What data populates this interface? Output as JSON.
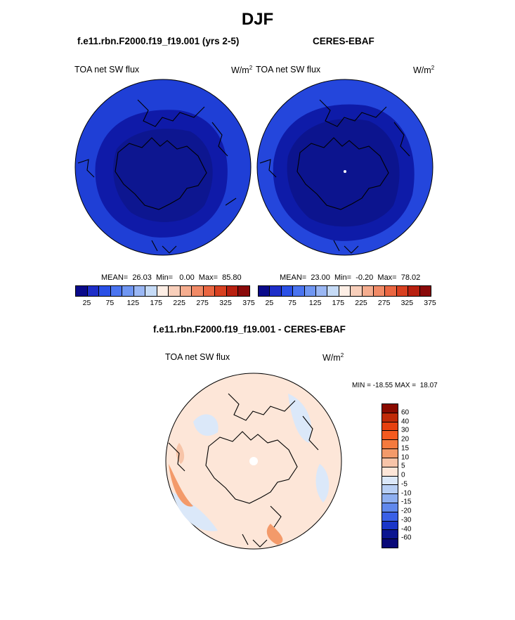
{
  "title": "DJF",
  "panels": [
    {
      "header": "f.e11.rbn.F2000.f19_f19.001 (yrs 2-5)",
      "variable": "TOA net SW flux",
      "unit": "W/m",
      "unit_sup": "2",
      "stats": "MEAN=  26.03  Min=   0.00  Max=  85.80"
    },
    {
      "header": "CERES-EBAF",
      "variable": "TOA net SW flux",
      "unit": "W/m",
      "unit_sup": "2",
      "stats": "MEAN=  23.00  Min=  -0.20  Max=  78.02"
    }
  ],
  "diff": {
    "header": "f.e11.rbn.F2000.f19_f19.001 - CERES-EBAF",
    "variable": "TOA net SW flux",
    "unit": "W/m",
    "unit_sup": "2",
    "minmax": "MIN = -18.55 MAX =  18.07"
  },
  "chart_data": [
    {
      "type": "heatmap",
      "projection": "polar-stereographic-north",
      "title": "f.e11.rbn.F2000.f19_f19.001 (yrs 2-5)",
      "variable": "TOA net SW flux",
      "units": "W/m2",
      "mean": 26.03,
      "min": 0.0,
      "max": 85.8,
      "colorbar_ticks": [
        25,
        75,
        125,
        175,
        225,
        275,
        325,
        375
      ],
      "colorbar_colors": [
        "#0a0a8a",
        "#1e2ec8",
        "#2a50e6",
        "#4a74f0",
        "#6f96f2",
        "#9ab7f4",
        "#c6dbf7",
        "#fdeee5",
        "#f8cfbb",
        "#f5ad8f",
        "#f18a66",
        "#ea6641",
        "#d84020",
        "#b82010",
        "#8a0a0a"
      ]
    },
    {
      "type": "heatmap",
      "projection": "polar-stereographic-north",
      "title": "CERES-EBAF",
      "variable": "TOA net SW flux",
      "units": "W/m2",
      "mean": 23.0,
      "min": -0.2,
      "max": 78.02,
      "colorbar_ticks": [
        25,
        75,
        125,
        175,
        225,
        275,
        325,
        375
      ]
    },
    {
      "type": "heatmap",
      "projection": "polar-stereographic-north",
      "title": "f.e11.rbn.F2000.f19_f19.001 - CERES-EBAF",
      "variable": "TOA net SW flux",
      "units": "W/m2",
      "min": -18.55,
      "max": 18.07,
      "colorbar_ticks": [
        60,
        40,
        30,
        20,
        15,
        10,
        5,
        0,
        -5,
        -10,
        -15,
        -20,
        -30,
        -40,
        -60
      ],
      "colorbar_colors": [
        "#8a0a00",
        "#c02a08",
        "#e6400f",
        "#f45a20",
        "#f57a3e",
        "#f39a6a",
        "#f7c4a8",
        "#fde6d8",
        "#dbe8f9",
        "#b8cff4",
        "#8eaff0",
        "#6088ec",
        "#3a60e6",
        "#1a36c8",
        "#0c1690",
        "#0a0a78"
      ]
    }
  ]
}
